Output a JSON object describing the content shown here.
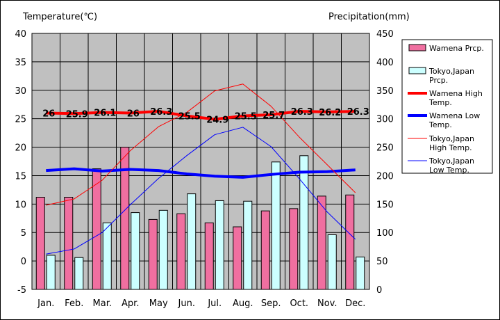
{
  "chart_data": {
    "type": "bar+line",
    "categories": [
      "Jan.",
      "Feb.",
      "Mar.",
      "Apr.",
      "May",
      "Jun.",
      "Jul.",
      "Aug.",
      "Sep.",
      "Oct.",
      "Nov.",
      "Dec."
    ],
    "left_axis": {
      "label": "Temperature(℃)",
      "min": -5,
      "max": 40,
      "step": 5
    },
    "right_axis": {
      "label": "Precipitation(mm)",
      "min": 0,
      "max": 450,
      "step": 50
    },
    "grid": true,
    "legend_position": "right",
    "series": [
      {
        "name": "Wamena Prcp.",
        "type": "bar",
        "axis": "right",
        "color": "#f06fa0",
        "values": [
          162,
          162,
          212,
          250,
          123,
          133,
          117,
          110,
          138,
          142,
          164,
          166
        ]
      },
      {
        "name": "Tokyo,Japan Prcp.",
        "type": "bar",
        "axis": "right",
        "color": "#ccffff",
        "values": [
          60,
          56,
          117,
          135,
          139,
          168,
          156,
          155,
          224,
          235,
          96,
          57
        ]
      },
      {
        "name": "Wamena High Temp.",
        "type": "line",
        "axis": "left",
        "color": "#ff0000",
        "width": "thick",
        "values": [
          26,
          25.9,
          26.1,
          26,
          26.3,
          25.5,
          24.9,
          25.5,
          25.7,
          26.3,
          26.2,
          26.3
        ],
        "labels": [
          "26",
          "25.9",
          "26.1",
          "26",
          "26.3",
          "25.5",
          "24.9",
          "25.5",
          "25.7",
          "26.3",
          "26.2",
          "26.3"
        ]
      },
      {
        "name": "Wamena Low Temp.",
        "type": "line",
        "axis": "left",
        "color": "#0000ff",
        "width": "thick",
        "values": [
          15.9,
          16.2,
          15.8,
          16.1,
          15.9,
          15.3,
          14.9,
          14.7,
          15.2,
          15.6,
          15.7,
          16
        ]
      },
      {
        "name": "Tokyo,Japan High Temp.",
        "type": "line",
        "axis": "left",
        "color": "#ff0000",
        "width": "thin",
        "values": [
          9.8,
          10.9,
          14.2,
          19.4,
          23.6,
          26.1,
          29.9,
          31.1,
          27.2,
          21.8,
          16.9,
          12
        ]
      },
      {
        "name": "Tokyo,Japan Low Temp.",
        "type": "line",
        "axis": "left",
        "color": "#0000ff",
        "width": "thin",
        "values": [
          1.2,
          2.1,
          5,
          9.9,
          14.5,
          18.5,
          22.2,
          23.5,
          20.1,
          14.5,
          8.6,
          3.8
        ]
      }
    ],
    "legend_labels": [
      [
        "Wamena Prcp."
      ],
      [
        "Tokyo,Japan",
        "Prcp."
      ],
      [
        "Wamena High",
        "Temp."
      ],
      [
        "Wamena Low",
        "Temp."
      ],
      [
        "Tokyo,Japan",
        "High Temp."
      ],
      [
        "Tokyo,Japan",
        "Low Temp."
      ]
    ]
  }
}
